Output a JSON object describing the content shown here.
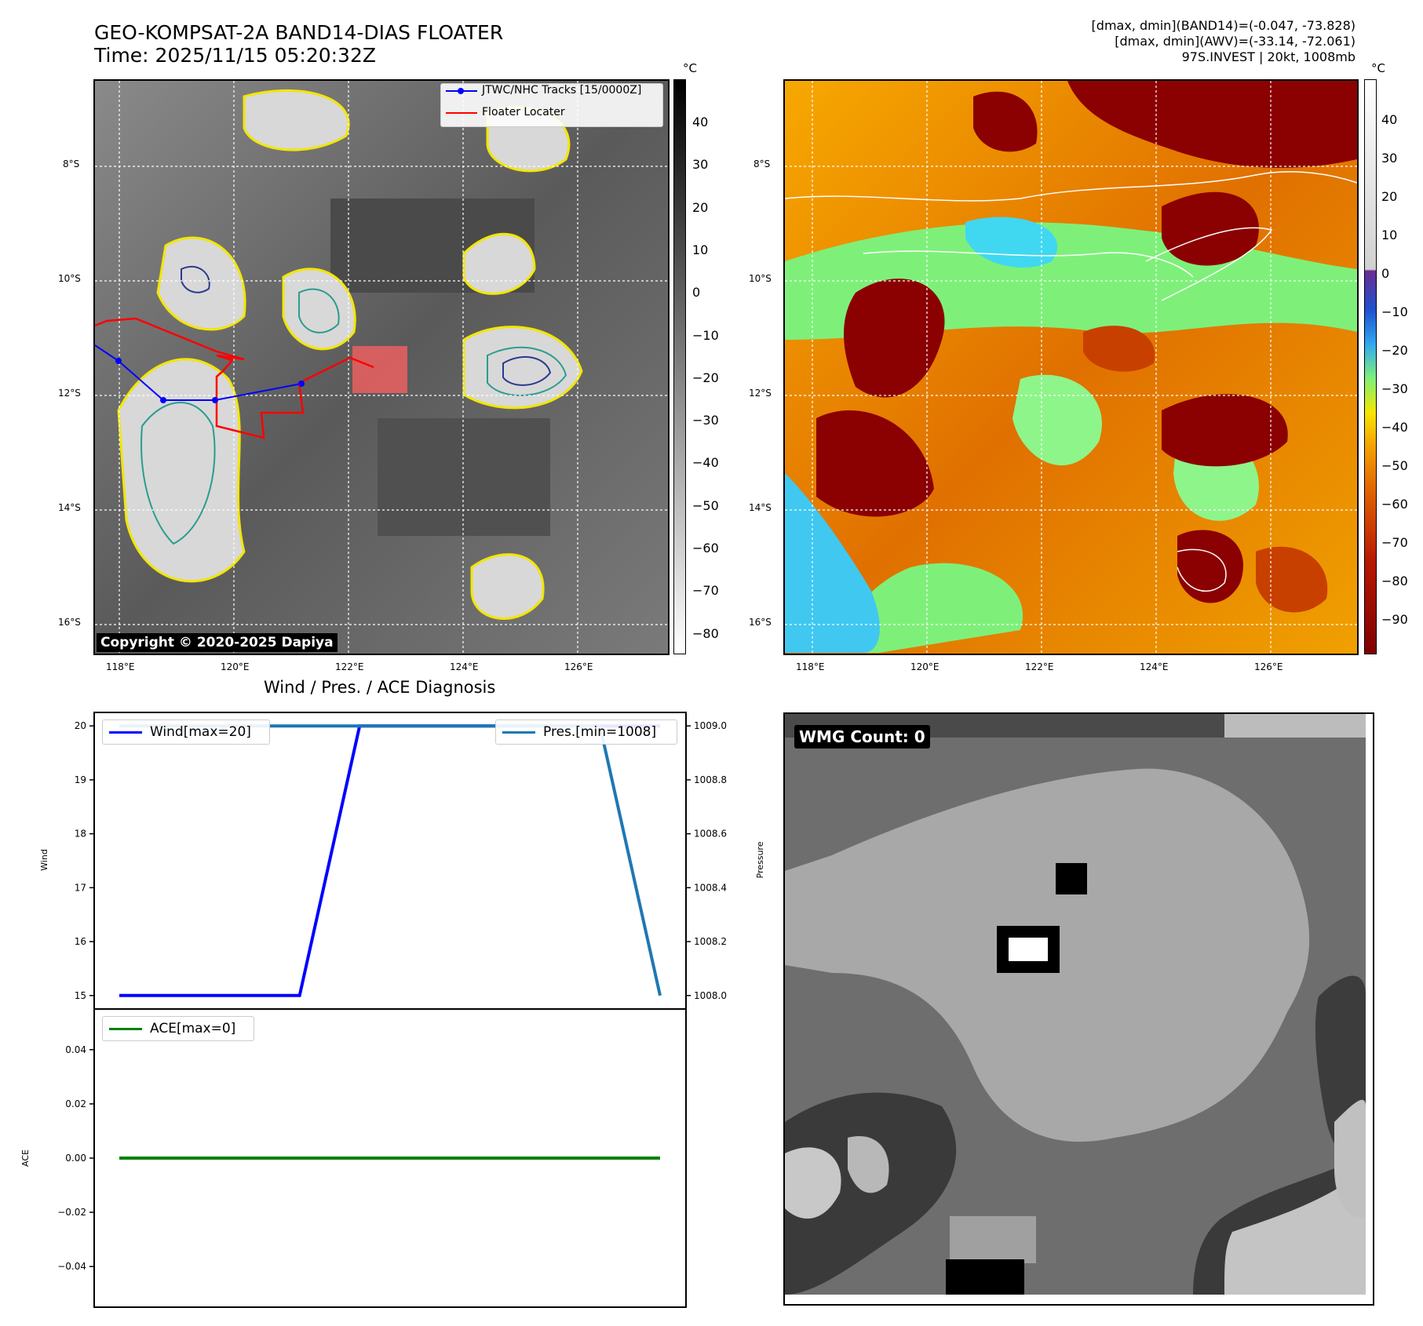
{
  "header": {
    "title_line1": "GEO-KOMPSAT-2A BAND14-DIAS FLOATER",
    "title_line2": "Time: 2025/11/15 05:20:32Z",
    "info_line1": "[dmax, dmin](BAND14)=(-0.047, -73.828)",
    "info_line2": "[dmax, dmin](AWV)=(-33.14, -72.061)",
    "info_line3": "97S.INVEST | 20kt, 1008mb"
  },
  "map_axes": {
    "lon_ticks": [
      "118°E",
      "120°E",
      "122°E",
      "124°E",
      "126°E"
    ],
    "lat_ticks": [
      "8°S",
      "10°S",
      "12°S",
      "14°S",
      "16°S"
    ]
  },
  "left_map": {
    "colorbar_unit": "°C",
    "colorbar_ticks": [
      "40",
      "30",
      "20",
      "10",
      "0",
      "−10",
      "−20",
      "−30",
      "−40",
      "−50",
      "−60",
      "−70",
      "−80"
    ],
    "legend_tracks": "JTWC/NHC Tracks [15/0000Z]",
    "legend_floater": "Floater Locater",
    "copyright": "Copyright © 2020-2025 Dapiya",
    "colors": {
      "tracks": "#0000ff",
      "floater": "#ff0000"
    }
  },
  "right_map": {
    "colorbar_unit": "°C",
    "colorbar_ticks": [
      "40",
      "30",
      "20",
      "10",
      "0",
      "−10",
      "−20",
      "−30",
      "−40",
      "−50",
      "−60",
      "−70",
      "−80",
      "−90"
    ]
  },
  "diagnosis": {
    "title": "Wind / Pres. / ACE Diagnosis",
    "wind_ylabel": "Wind",
    "pressure_ylabel": "Pressure",
    "ace_ylabel": "ACE",
    "wind_ticks": [
      "20",
      "19",
      "18",
      "17",
      "16",
      "15"
    ],
    "pressure_ticks": [
      "1009.0",
      "1008.8",
      "1008.6",
      "1008.4",
      "1008.2",
      "1008.0"
    ],
    "ace_ticks": [
      "0.04",
      "0.02",
      "0.00",
      "−0.02",
      "−0.04"
    ],
    "legend_wind": "Wind[max=20]",
    "legend_pres": "Pres.[min=1008]",
    "legend_ace": "ACE[max=0]"
  },
  "wmg": {
    "label": "WMG Count: 0"
  },
  "chart_data": [
    {
      "type": "line",
      "title": "Wind / Pres. / ACE Diagnosis",
      "ylabel": "Wind",
      "ylim": [
        14.75,
        20.25
      ],
      "series": [
        {
          "name": "Wind[max=20]",
          "color": "#0000ff",
          "values": [
            15,
            15,
            15,
            15,
            20,
            20,
            20,
            20,
            20,
            20
          ]
        }
      ]
    },
    {
      "type": "line",
      "ylabel": "Pressure",
      "ylim": [
        1007.95,
        1009.05
      ],
      "series": [
        {
          "name": "Pres.[min=1008]",
          "color": "#1f77b4",
          "values": [
            1009,
            1009,
            1009,
            1009,
            1009,
            1009,
            1009,
            1009,
            1009,
            1008
          ]
        }
      ]
    },
    {
      "type": "line",
      "ylabel": "ACE",
      "ylim": [
        -0.055,
        0.055
      ],
      "series": [
        {
          "name": "ACE[max=0]",
          "color": "#008000",
          "values": [
            0,
            0,
            0,
            0,
            0,
            0,
            0,
            0,
            0,
            0
          ]
        }
      ]
    }
  ]
}
